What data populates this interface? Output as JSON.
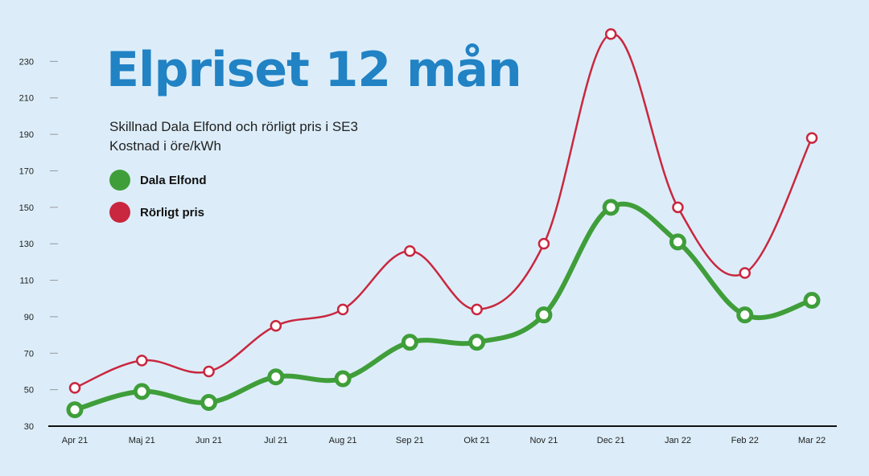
{
  "chart_data": {
    "type": "line",
    "title": "Elpriset 12 mån",
    "subtitle_lines": [
      "Skillnad Dala Elfond och rörligt pris i SE3",
      "Kostnad i öre/kWh"
    ],
    "categories": [
      "Apr 21",
      "Maj 21",
      "Jun 21",
      "Jul 21",
      "Aug 21",
      "Sep 21",
      "Okt 21",
      "Nov 21",
      "Dec 21",
      "Jan 22",
      "Feb 22",
      "Mar 22"
    ],
    "series": [
      {
        "name": "Dala Elfond",
        "color": "#3f9e3a",
        "values": [
          39,
          49,
          43,
          57,
          56,
          76,
          76,
          91,
          150,
          131,
          91,
          99
        ]
      },
      {
        "name": "Rörligt pris",
        "color": "#c9273f",
        "values": [
          51,
          66,
          60,
          85,
          94,
          126,
          94,
          130,
          245,
          150,
          114,
          188
        ]
      }
    ],
    "ylim": [
      30,
      250
    ],
    "yticks": [
      30,
      50,
      70,
      90,
      110,
      130,
      150,
      170,
      190,
      210,
      230
    ],
    "grid": false,
    "legend_position": "top-left"
  }
}
